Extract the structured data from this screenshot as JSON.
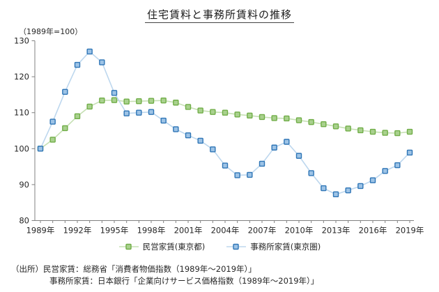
{
  "title": "住宅賃料と事務所賃料の推移",
  "axis_note": "（1989年=100）",
  "source": {
    "line1": "（出所）民営家賃：総務省「消費者物価指数（1989年～2019年）」",
    "line2": "事務所家賃：日本銀行「企業向けサービス価格指数（1989年～2019年）」"
  },
  "chart_data": {
    "type": "line",
    "title": "住宅賃料と事務所賃料の推移",
    "subtitle": "（1989年=100）",
    "x": [
      1989,
      1990,
      1991,
      1992,
      1993,
      1994,
      1995,
      1996,
      1997,
      1998,
      1999,
      2000,
      2001,
      2002,
      2003,
      2004,
      2005,
      2006,
      2007,
      2008,
      2009,
      2010,
      2011,
      2012,
      2013,
      2014,
      2015,
      2016,
      2017,
      2018,
      2019
    ],
    "x_tick_years": [
      1989,
      1992,
      1995,
      1998,
      2001,
      2004,
      2007,
      2010,
      2013,
      2016,
      2019
    ],
    "x_tick_labels": [
      "1989年",
      "1992年",
      "1995年",
      "1998年",
      "2001年",
      "2004年",
      "2007年",
      "2010年",
      "2013年",
      "2016年",
      "2019年"
    ],
    "ylim": [
      80,
      130
    ],
    "y_ticks": [
      80,
      90,
      100,
      110,
      120,
      130
    ],
    "grid": false,
    "legend_position": "bottom",
    "series": [
      {
        "name": "民営家賃(東京都)",
        "line_color": "#c6e0b4",
        "marker_fill": "#a9d18e",
        "marker_border": "#70ad47",
        "values": [
          100,
          102.5,
          105.7,
          109.0,
          111.7,
          113.4,
          113.5,
          113.1,
          113.2,
          113.3,
          113.4,
          112.8,
          111.6,
          110.6,
          110.2,
          110.0,
          109.5,
          109.2,
          108.8,
          108.5,
          108.4,
          107.9,
          107.4,
          106.8,
          106.2,
          105.6,
          105.1,
          104.7,
          104.4,
          104.3,
          104.7
        ]
      },
      {
        "name": "事務所家賃(東京圏)",
        "line_color": "#bdd7ee",
        "marker_fill": "#9dc3e6",
        "marker_border": "#2e75b6",
        "values": [
          100,
          107.5,
          115.8,
          123.3,
          127.0,
          124.0,
          115.5,
          109.8,
          110.0,
          110.2,
          107.8,
          105.4,
          103.7,
          102.2,
          99.8,
          95.3,
          92.6,
          92.7,
          95.8,
          100.3,
          101.9,
          98.0,
          93.2,
          89.0,
          87.3,
          88.4,
          89.6,
          91.2,
          93.8,
          95.4,
          98.9
        ]
      }
    ]
  }
}
